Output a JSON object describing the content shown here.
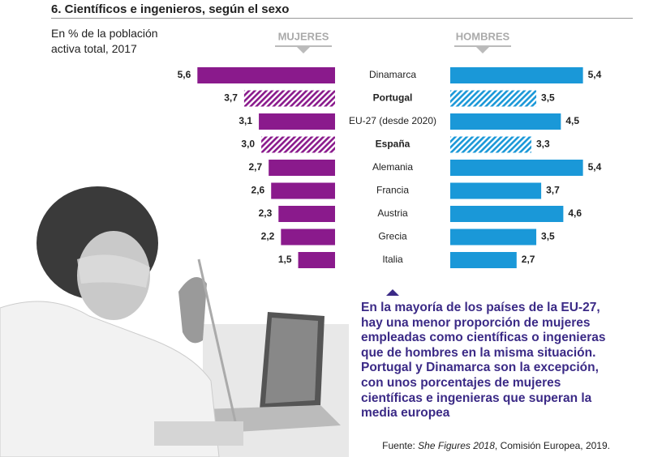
{
  "chart_data": {
    "type": "butterfly-bar",
    "title": "6. Científicos e ingenieros, según el sexo",
    "subtitle": "En % de la población activa total, 2017",
    "categories": [
      "Dinamarca",
      "Portugal",
      "EU-27 (desde 2020)",
      "España",
      "Alemania",
      "Francia",
      "Austria",
      "Grecia",
      "Italia"
    ],
    "highlight_categories": [
      1,
      3
    ],
    "series": [
      {
        "name": "MUJERES",
        "color": "#8a1a8c",
        "values": [
          5.6,
          3.7,
          3.1,
          3.0,
          2.7,
          2.6,
          2.3,
          2.2,
          1.5
        ],
        "value_labels": [
          "5,6",
          "3,7",
          "3,1",
          "3,0",
          "2,7",
          "2,6",
          "2,3",
          "2,2",
          "1,5"
        ]
      },
      {
        "name": "HOMBRES",
        "color": "#1a98d8",
        "values": [
          5.4,
          3.5,
          4.5,
          3.3,
          5.4,
          3.7,
          4.6,
          3.5,
          2.7
        ],
        "value_labels": [
          "5,4",
          "3,5",
          "4,5",
          "3,3",
          "5,4",
          "3,7",
          "4,6",
          "3,5",
          "2,7"
        ]
      }
    ],
    "annotation": "En la mayoría de los países de la EU-27, hay una menor proporción de mujeres empleadas como científicas o ingenieras que de hombres en la misma situación. Portugal y Dinamarca son la excepción, con unos porcentajes de mujeres científicas e ingenieras que superan la media europea",
    "source": [
      "Fuente: ",
      "She Figures 2018",
      ", Comisión Europea, 2019."
    ]
  }
}
